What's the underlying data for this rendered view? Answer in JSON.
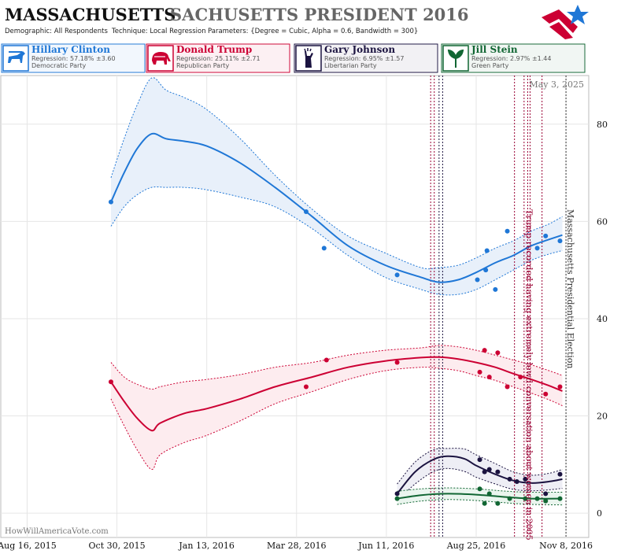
{
  "header": {
    "title_state": "MASSACHUSETTS",
    "title_rest": "SACHUSETTS PRESIDENT 2016",
    "demographic_label": "Demographic:",
    "demographic_value": "All Respondents",
    "technique_label": "Technique:",
    "technique_value": "Local Regression",
    "parameters_label": "Parameters:",
    "parameters_value": "{Degree = Cubic, Alpha = 0.6, Bandwidth = 300}"
  },
  "candidates": [
    {
      "name": "Hillary Clinton",
      "regression": "Regression: 57.18% ±3.60",
      "party": "Democratic Party",
      "color": "#1f77d6",
      "icon": "donkey-icon"
    },
    {
      "name": "Donald Trump",
      "regression": "Regression: 25.11% ±2.71",
      "party": "Republican Party",
      "color": "#cc0033",
      "icon": "elephant-icon"
    },
    {
      "name": "Gary Johnson",
      "regression": "Regression: 6.95% ±1.57",
      "party": "Libertarian Party",
      "color": "#1b1340",
      "icon": "liberty-icon"
    },
    {
      "name": "Jill Stein",
      "regression": "Regression: 2.97% ±1.44",
      "party": "Green Party",
      "color": "#116633",
      "icon": "plant-icon"
    }
  ],
  "chart_data": {
    "type": "line",
    "date_label": "May 3, 2025",
    "watermark": "HowWillAmericaVote.com",
    "x_ticks": [
      {
        "date": "2015-08-16",
        "label": "Aug 16, 2015"
      },
      {
        "date": "2015-10-30",
        "label": "Oct 30, 2015"
      },
      {
        "date": "2016-01-13",
        "label": "Jan 13, 2016"
      },
      {
        "date": "2016-03-28",
        "label": "Mar 28, 2016"
      },
      {
        "date": "2016-06-11",
        "label": "Jun 11, 2016"
      },
      {
        "date": "2016-08-25",
        "label": "Aug 25, 2016"
      },
      {
        "date": "2016-11-08",
        "label": "Nov 8, 2016"
      }
    ],
    "y_ticks": [
      0,
      20,
      40,
      60,
      80
    ],
    "ylim": [
      -5,
      90
    ],
    "xlim": [
      "2015-07-25",
      "2016-11-27"
    ],
    "annotations": [
      {
        "date": "2016-10-07",
        "text": "Trump recorded having extremely lewd conversation about women in 2005",
        "color": "#990033"
      },
      {
        "date": "2016-11-08",
        "text": "Massachusetts Presidential Election",
        "color": "#333333"
      }
    ],
    "event_lines": [
      {
        "date": "2016-07-18",
        "color": "#990033"
      },
      {
        "date": "2016-07-21",
        "color": "#990033"
      },
      {
        "date": "2016-07-25",
        "color": "#1b1340"
      },
      {
        "date": "2016-07-28",
        "color": "#1b1340"
      },
      {
        "date": "2016-09-26",
        "color": "#990033"
      },
      {
        "date": "2016-10-04",
        "color": "#990033"
      },
      {
        "date": "2016-10-07",
        "color": "#990033"
      },
      {
        "date": "2016-10-09",
        "color": "#990033"
      },
      {
        "date": "2016-10-19",
        "color": "#990033"
      },
      {
        "date": "2016-11-08",
        "color": "#333333"
      }
    ],
    "series": [
      {
        "name": "Hillary Clinton",
        "color": "#1f77d6",
        "band": "#e8f0fa",
        "trend": [
          [
            "2015-10-25",
            64
          ],
          [
            "2015-11-05",
            70
          ],
          [
            "2015-11-16",
            75
          ],
          [
            "2015-11-28",
            78
          ],
          [
            "2015-12-10",
            77
          ],
          [
            "2015-12-25",
            76.5
          ],
          [
            "2016-01-13",
            75.5
          ],
          [
            "2016-02-10",
            72
          ],
          [
            "2016-03-10",
            67
          ],
          [
            "2016-04-10",
            61
          ],
          [
            "2016-05-10",
            55
          ],
          [
            "2016-06-10",
            51
          ],
          [
            "2016-07-10",
            48.5
          ],
          [
            "2016-07-25",
            47.5
          ],
          [
            "2016-08-10",
            48
          ],
          [
            "2016-08-25",
            49.5
          ],
          [
            "2016-09-10",
            51.5
          ],
          [
            "2016-09-25",
            53
          ],
          [
            "2016-10-10",
            55
          ],
          [
            "2016-10-25",
            56.3
          ],
          [
            "2016-11-05",
            57.2
          ]
        ],
        "upper": [
          [
            "2015-10-25",
            69
          ],
          [
            "2015-11-05",
            77
          ],
          [
            "2015-11-16",
            84
          ],
          [
            "2015-11-28",
            89.5
          ],
          [
            "2015-12-10",
            87
          ],
          [
            "2015-12-25",
            85.5
          ],
          [
            "2016-01-13",
            83
          ],
          [
            "2016-02-10",
            77
          ],
          [
            "2016-03-10",
            69.5
          ],
          [
            "2016-04-10",
            62.5
          ],
          [
            "2016-05-10",
            57
          ],
          [
            "2016-06-10",
            53.5
          ],
          [
            "2016-07-10",
            50.5
          ],
          [
            "2016-07-25",
            50.5
          ],
          [
            "2016-08-10",
            51
          ],
          [
            "2016-08-25",
            52.5
          ],
          [
            "2016-09-10",
            54.5
          ],
          [
            "2016-09-25",
            56
          ],
          [
            "2016-10-10",
            58
          ],
          [
            "2016-10-25",
            59.5
          ],
          [
            "2016-11-05",
            61
          ]
        ],
        "lower": [
          [
            "2015-10-25",
            59
          ],
          [
            "2015-11-05",
            63
          ],
          [
            "2015-11-16",
            65.5
          ],
          [
            "2015-11-28",
            67
          ],
          [
            "2015-12-10",
            67
          ],
          [
            "2015-12-25",
            67
          ],
          [
            "2016-01-13",
            66.5
          ],
          [
            "2016-02-10",
            65
          ],
          [
            "2016-03-10",
            63
          ],
          [
            "2016-04-10",
            58.5
          ],
          [
            "2016-05-10",
            53
          ],
          [
            "2016-06-10",
            48.5
          ],
          [
            "2016-07-10",
            46
          ],
          [
            "2016-07-25",
            45
          ],
          [
            "2016-08-10",
            45
          ],
          [
            "2016-08-25",
            46
          ],
          [
            "2016-09-10",
            48
          ],
          [
            "2016-09-25",
            50
          ],
          [
            "2016-10-10",
            52
          ],
          [
            "2016-10-25",
            53.3
          ],
          [
            "2016-11-05",
            54
          ]
        ],
        "points": [
          [
            "2015-10-25",
            64
          ],
          [
            "2016-04-05",
            62
          ],
          [
            "2016-04-20",
            54.5
          ],
          [
            "2016-06-20",
            49
          ],
          [
            "2016-08-26",
            48
          ],
          [
            "2016-09-02",
            50
          ],
          [
            "2016-09-03",
            54
          ],
          [
            "2016-09-10",
            46
          ],
          [
            "2016-09-20",
            58
          ],
          [
            "2016-10-15",
            54.5
          ],
          [
            "2016-10-22",
            57
          ],
          [
            "2016-11-03",
            56
          ]
        ]
      },
      {
        "name": "Donald Trump",
        "color": "#cc0033",
        "band": "#fdecef",
        "trend": [
          [
            "2015-10-25",
            27
          ],
          [
            "2015-11-05",
            23
          ],
          [
            "2015-11-16",
            19.5
          ],
          [
            "2015-11-28",
            17
          ],
          [
            "2015-12-05",
            18.5
          ],
          [
            "2015-12-25",
            20.5
          ],
          [
            "2016-01-13",
            21.5
          ],
          [
            "2016-02-10",
            23.5
          ],
          [
            "2016-03-10",
            26
          ],
          [
            "2016-04-10",
            28
          ],
          [
            "2016-05-10",
            30
          ],
          [
            "2016-06-10",
            31.3
          ],
          [
            "2016-07-10",
            32
          ],
          [
            "2016-07-25",
            32.1
          ],
          [
            "2016-08-10",
            31.7
          ],
          [
            "2016-08-25",
            31
          ],
          [
            "2016-09-10",
            30
          ],
          [
            "2016-09-25",
            28.7
          ],
          [
            "2016-10-10",
            27.5
          ],
          [
            "2016-10-25",
            26.2
          ],
          [
            "2016-11-05",
            25.1
          ]
        ],
        "upper": [
          [
            "2015-10-25",
            31
          ],
          [
            "2015-11-05",
            28
          ],
          [
            "2015-11-16",
            26.5
          ],
          [
            "2015-11-28",
            25.5
          ],
          [
            "2015-12-05",
            26
          ],
          [
            "2015-12-25",
            27
          ],
          [
            "2016-01-13",
            27.5
          ],
          [
            "2016-02-10",
            28.5
          ],
          [
            "2016-03-10",
            30
          ],
          [
            "2016-04-10",
            31
          ],
          [
            "2016-05-10",
            32.5
          ],
          [
            "2016-06-10",
            33.5
          ],
          [
            "2016-07-10",
            34
          ],
          [
            "2016-07-25",
            34.5
          ],
          [
            "2016-08-10",
            34.2
          ],
          [
            "2016-08-25",
            33.5
          ],
          [
            "2016-09-10",
            32.5
          ],
          [
            "2016-09-25",
            31.5
          ],
          [
            "2016-10-10",
            30.5
          ],
          [
            "2016-10-25",
            29.3
          ],
          [
            "2016-11-05",
            28.3
          ]
        ],
        "lower": [
          [
            "2015-10-25",
            23.5
          ],
          [
            "2015-11-05",
            18
          ],
          [
            "2015-11-16",
            13
          ],
          [
            "2015-11-28",
            9
          ],
          [
            "2015-12-05",
            12
          ],
          [
            "2015-12-25",
            14.5
          ],
          [
            "2016-01-13",
            16
          ],
          [
            "2016-02-10",
            19
          ],
          [
            "2016-03-10",
            22.5
          ],
          [
            "2016-04-10",
            25
          ],
          [
            "2016-05-10",
            27.5
          ],
          [
            "2016-06-10",
            29.3
          ],
          [
            "2016-07-10",
            30
          ],
          [
            "2016-07-25",
            29.8
          ],
          [
            "2016-08-10",
            29.3
          ],
          [
            "2016-08-25",
            28.3
          ],
          [
            "2016-09-10",
            27.3
          ],
          [
            "2016-09-25",
            26
          ],
          [
            "2016-10-10",
            24.7
          ],
          [
            "2016-10-25",
            23.3
          ],
          [
            "2016-11-05",
            22.1
          ]
        ],
        "points": [
          [
            "2015-10-25",
            27
          ],
          [
            "2016-04-05",
            26
          ],
          [
            "2016-04-22",
            31.5
          ],
          [
            "2016-06-20",
            31
          ],
          [
            "2016-08-28",
            29
          ],
          [
            "2016-09-01",
            33.5
          ],
          [
            "2016-09-05",
            28
          ],
          [
            "2016-09-12",
            33
          ],
          [
            "2016-09-20",
            26
          ],
          [
            "2016-10-01",
            28
          ],
          [
            "2016-10-22",
            24.5
          ],
          [
            "2016-11-03",
            26
          ]
        ]
      },
      {
        "name": "Gary Johnson",
        "color": "#1b1340",
        "band": "#eeeef5",
        "trend": [
          [
            "2016-06-20",
            4
          ],
          [
            "2016-07-05",
            8.5
          ],
          [
            "2016-07-20",
            11
          ],
          [
            "2016-08-01",
            11.7
          ],
          [
            "2016-08-15",
            11.2
          ],
          [
            "2016-08-25",
            9.8
          ],
          [
            "2016-09-10",
            8
          ],
          [
            "2016-09-25",
            6.7
          ],
          [
            "2016-10-10",
            6.2
          ],
          [
            "2016-10-25",
            6.5
          ],
          [
            "2016-11-05",
            7
          ]
        ],
        "upper": [
          [
            "2016-06-20",
            6
          ],
          [
            "2016-07-05",
            10.5
          ],
          [
            "2016-07-20",
            13
          ],
          [
            "2016-08-01",
            13.3
          ],
          [
            "2016-08-15",
            13.2
          ],
          [
            "2016-08-25",
            12
          ],
          [
            "2016-09-10",
            10.2
          ],
          [
            "2016-09-25",
            8.5
          ],
          [
            "2016-10-10",
            7.8
          ],
          [
            "2016-10-25",
            8.2
          ],
          [
            "2016-11-05",
            9
          ]
        ],
        "lower": [
          [
            "2016-06-20",
            2.5
          ],
          [
            "2016-07-05",
            6
          ],
          [
            "2016-07-20",
            8.5
          ],
          [
            "2016-08-01",
            9.2
          ],
          [
            "2016-08-15",
            8.6
          ],
          [
            "2016-08-25",
            7.4
          ],
          [
            "2016-09-10",
            6
          ],
          [
            "2016-09-25",
            4.9
          ],
          [
            "2016-10-10",
            4.6
          ],
          [
            "2016-10-25",
            4.8
          ],
          [
            "2016-11-05",
            5.1
          ]
        ],
        "points": [
          [
            "2016-06-20",
            4
          ],
          [
            "2016-08-28",
            11
          ],
          [
            "2016-09-01",
            8.5
          ],
          [
            "2016-09-05",
            9
          ],
          [
            "2016-09-12",
            8.5
          ],
          [
            "2016-09-22",
            7
          ],
          [
            "2016-09-28",
            6.5
          ],
          [
            "2016-10-05",
            7
          ],
          [
            "2016-10-22",
            4
          ],
          [
            "2016-11-03",
            8
          ]
        ]
      },
      {
        "name": "Jill Stein",
        "color": "#116633",
        "band": "#eaf5ee",
        "trend": [
          [
            "2016-06-20",
            3
          ],
          [
            "2016-07-10",
            3.7
          ],
          [
            "2016-08-01",
            4
          ],
          [
            "2016-08-25",
            3.8
          ],
          [
            "2016-09-20",
            3.3
          ],
          [
            "2016-10-10",
            3
          ],
          [
            "2016-11-05",
            3
          ]
        ],
        "upper": [
          [
            "2016-06-20",
            4.5
          ],
          [
            "2016-07-10",
            5
          ],
          [
            "2016-08-01",
            5.2
          ],
          [
            "2016-08-25",
            5
          ],
          [
            "2016-09-20",
            4.5
          ],
          [
            "2016-10-10",
            4.3
          ],
          [
            "2016-11-05",
            4.3
          ]
        ],
        "lower": [
          [
            "2016-06-20",
            1.8
          ],
          [
            "2016-07-10",
            2.5
          ],
          [
            "2016-08-01",
            2.8
          ],
          [
            "2016-08-25",
            2.6
          ],
          [
            "2016-09-20",
            2.1
          ],
          [
            "2016-10-10",
            1.8
          ],
          [
            "2016-11-05",
            1.7
          ]
        ],
        "points": [
          [
            "2016-06-20",
            3
          ],
          [
            "2016-08-28",
            5
          ],
          [
            "2016-09-01",
            2
          ],
          [
            "2016-09-05",
            4
          ],
          [
            "2016-09-12",
            2
          ],
          [
            "2016-09-22",
            3
          ],
          [
            "2016-10-05",
            3
          ],
          [
            "2016-10-15",
            3
          ],
          [
            "2016-10-22",
            2.5
          ],
          [
            "2016-11-03",
            3
          ]
        ]
      }
    ]
  }
}
